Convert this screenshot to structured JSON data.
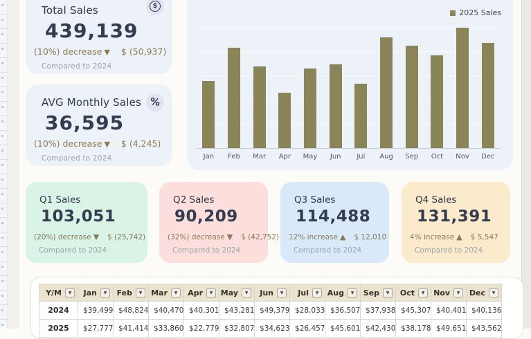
{
  "colors": {
    "accent_olive": "#8a8459",
    "navy_text": "#333d4f",
    "kpi_card_bg": "#edf1f8",
    "table_header_bg": "#ebe3ce"
  },
  "kpis": [
    {
      "title": "Total Sales",
      "icon": "dollar-circle-icon",
      "value": "439,139",
      "change": "(10%) decrease",
      "arrow": "▼",
      "delta": "$ (50,937)",
      "note": "Compared to 2024"
    },
    {
      "title": "AVG Monthly Sales",
      "icon": "percent-icon",
      "value": "36,595",
      "change": "(10%) decrease",
      "arrow": "▼",
      "delta": "$ (4,245)",
      "note": "Compared to 2024"
    }
  ],
  "chart_data": {
    "type": "bar",
    "title": "",
    "xlabel": "",
    "ylabel": "",
    "categories": [
      "Jan",
      "Feb",
      "Mar",
      "Apr",
      "May",
      "Jun",
      "Jul",
      "Aug",
      "Sep",
      "Oct",
      "Nov",
      "Dec"
    ],
    "series": [
      {
        "name": "2025 Sales",
        "values": [
          27777,
          41414,
          33860,
          22779,
          32807,
          34623,
          26457,
          45601,
          42430,
          38178,
          49651,
          43562
        ]
      }
    ],
    "ylim": [
      0,
      60000
    ],
    "gridline_step": 10000,
    "grid": true,
    "y_axis_labels_visible": false,
    "legend_position": "top-right",
    "bar_color": "#8a8459"
  },
  "quarters": [
    {
      "title": "Q1 Sales",
      "value": "103,051",
      "change": "(20%) decrease",
      "arrow": "▼",
      "delta": "$ (25,742)",
      "note": "Compared to 2024",
      "bg": "#d9f3e7"
    },
    {
      "title": "Q2 Sales",
      "value": "90,209",
      "change": "(32%) decrease",
      "arrow": "▼",
      "delta": "$ (42,752)",
      "note": "Compared to 2024",
      "bg": "#fcdfdc"
    },
    {
      "title": "Q3 Sales",
      "value": "114,488",
      "change": "12% increase",
      "arrow": "▲",
      "delta": "$ 12,010",
      "note": "Compared to 2024",
      "bg": "#d9e9f9"
    },
    {
      "title": "Q4 Sales",
      "value": "131,391",
      "change": "4% increase",
      "arrow": "▲",
      "delta": "$ 5,547",
      "note": "Compared to 2024",
      "bg": "#fceacc"
    }
  ],
  "table": {
    "headers": [
      "Y/M",
      "Jan",
      "Feb",
      "Mar",
      "Apr",
      "May",
      "Jun",
      "Jul",
      "Aug",
      "Sep",
      "Oct",
      "Nov",
      "Dec"
    ],
    "currency": "$",
    "rows": [
      {
        "year": "2024",
        "values": [
          "39,499",
          "48,824",
          "40,470",
          "40,301",
          "43,281",
          "49,379",
          "28,033",
          "36,507",
          "37,938",
          "45,307",
          "40,401",
          "40,136"
        ]
      },
      {
        "year": "2025",
        "values": [
          "27,777",
          "41,414",
          "33,860",
          "22,779",
          "32,807",
          "34,623",
          "26,457",
          "45,601",
          "42,430",
          "38,178",
          "49,651",
          "43,562"
        ]
      }
    ]
  }
}
